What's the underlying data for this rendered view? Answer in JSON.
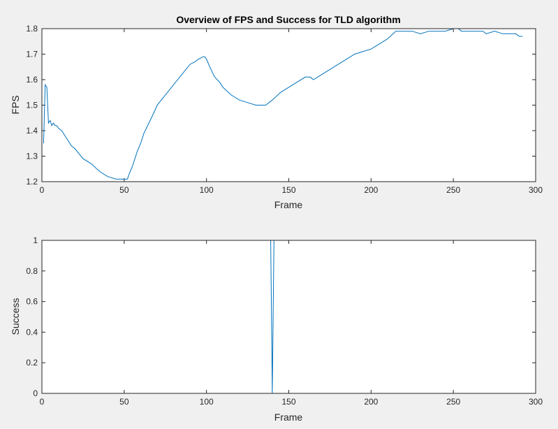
{
  "figure": {
    "background": "#f0f0f0"
  },
  "chart_data": [
    {
      "type": "line",
      "title": "Overview of FPS and Success for TLD algorithm",
      "xlabel": "Frame",
      "ylabel": "FPS",
      "xlim": [
        0,
        300
      ],
      "ylim": [
        1.2,
        1.8
      ],
      "xticks": [
        "0",
        "50",
        "100",
        "150",
        "200",
        "250",
        "300"
      ],
      "yticks": [
        "1.2",
        "1.3",
        "1.4",
        "1.5",
        "1.6",
        "1.7",
        "1.8"
      ],
      "color": "#0072bd",
      "series": [
        {
          "x": [
            1,
            2,
            3,
            4,
            5,
            6,
            7,
            8,
            9,
            10,
            12,
            15,
            18,
            20,
            25,
            30,
            35,
            40,
            45,
            48,
            50,
            51,
            52,
            53,
            55,
            58,
            60,
            62,
            65,
            68,
            70,
            75,
            80,
            85,
            90,
            93,
            95,
            98,
            99,
            100,
            102,
            105,
            108,
            110,
            115,
            120,
            125,
            130,
            133,
            136,
            138,
            140,
            145,
            150,
            155,
            160,
            163,
            165,
            170,
            175,
            180,
            185,
            190,
            195,
            200,
            205,
            210,
            215,
            220,
            225,
            230,
            235,
            240,
            245,
            250,
            251,
            253,
            255,
            260,
            265,
            268,
            270,
            275,
            280,
            285,
            288,
            290,
            292
          ],
          "y": [
            1.35,
            1.58,
            1.57,
            1.43,
            1.44,
            1.42,
            1.43,
            1.42,
            1.42,
            1.41,
            1.4,
            1.37,
            1.34,
            1.33,
            1.29,
            1.27,
            1.24,
            1.22,
            1.21,
            1.21,
            1.21,
            1.21,
            1.21,
            1.23,
            1.26,
            1.32,
            1.35,
            1.39,
            1.43,
            1.47,
            1.5,
            1.54,
            1.58,
            1.62,
            1.66,
            1.67,
            1.68,
            1.69,
            1.69,
            1.68,
            1.65,
            1.61,
            1.59,
            1.57,
            1.54,
            1.52,
            1.51,
            1.5,
            1.5,
            1.5,
            1.51,
            1.52,
            1.55,
            1.57,
            1.59,
            1.61,
            1.61,
            1.6,
            1.62,
            1.64,
            1.66,
            1.68,
            1.7,
            1.71,
            1.72,
            1.74,
            1.76,
            1.79,
            1.79,
            1.79,
            1.78,
            1.79,
            1.79,
            1.79,
            1.8,
            1.8,
            1.8,
            1.79,
            1.79,
            1.79,
            1.79,
            1.78,
            1.79,
            1.78,
            1.78,
            1.78,
            1.77,
            1.77
          ]
        }
      ]
    },
    {
      "type": "line",
      "title": "",
      "xlabel": "Frame",
      "ylabel": "Success",
      "xlim": [
        0,
        300
      ],
      "ylim": [
        0,
        1
      ],
      "xticks": [
        "0",
        "50",
        "100",
        "150",
        "200",
        "250",
        "300"
      ],
      "yticks": [
        "0",
        "0.2",
        "0.4",
        "0.6",
        "0.8",
        "1"
      ],
      "color": "#0072bd",
      "series": [
        {
          "x": [
            1,
            139,
            140,
            141,
            142,
            292
          ],
          "y": [
            1,
            1,
            0,
            1,
            1,
            1
          ]
        }
      ]
    }
  ]
}
